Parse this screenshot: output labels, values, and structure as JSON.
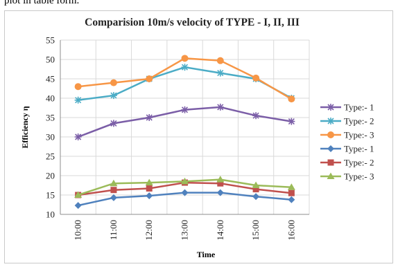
{
  "page_top_text": "plot in table form.",
  "chart_data": {
    "type": "line",
    "title": "Comparision 10m/s velocity of TYPE - I, II, III",
    "xlabel": "Time",
    "ylabel": "Efficiency η",
    "categories": [
      "10:00",
      "11:00",
      "12:00",
      "13:00",
      "14:00",
      "15:00",
      "16:00"
    ],
    "ylim": [
      10,
      55
    ],
    "yticks": [
      10,
      15,
      20,
      25,
      30,
      35,
      40,
      45,
      50,
      55
    ],
    "grid": true,
    "legend_position": "right",
    "series": [
      {
        "name": "Type:- 1",
        "color": "#7b5ea7",
        "marker": "star",
        "values": [
          30,
          33.5,
          35,
          37,
          37.7,
          35.5,
          34
        ]
      },
      {
        "name": "Type:- 2",
        "color": "#4bacc6",
        "marker": "star",
        "values": [
          39.5,
          40.7,
          45,
          48,
          46.5,
          45,
          40
        ]
      },
      {
        "name": "Type:- 3",
        "color": "#f79646",
        "marker": "circle",
        "values": [
          43,
          44,
          45,
          50.3,
          49.7,
          45.2,
          39.8
        ]
      },
      {
        "name": "Type:- 1",
        "color": "#4f81bd",
        "marker": "diamond",
        "values": [
          12.3,
          14.3,
          14.8,
          15.6,
          15.6,
          14.6,
          13.8
        ]
      },
      {
        "name": "Type:- 2",
        "color": "#c0504d",
        "marker": "square",
        "values": [
          15,
          16.3,
          16.7,
          18.2,
          18,
          16.5,
          15.5
        ]
      },
      {
        "name": "Type:- 3",
        "color": "#9bbb59",
        "marker": "triangle",
        "values": [
          15,
          18,
          18.2,
          18.5,
          19,
          17.5,
          17
        ]
      }
    ]
  }
}
